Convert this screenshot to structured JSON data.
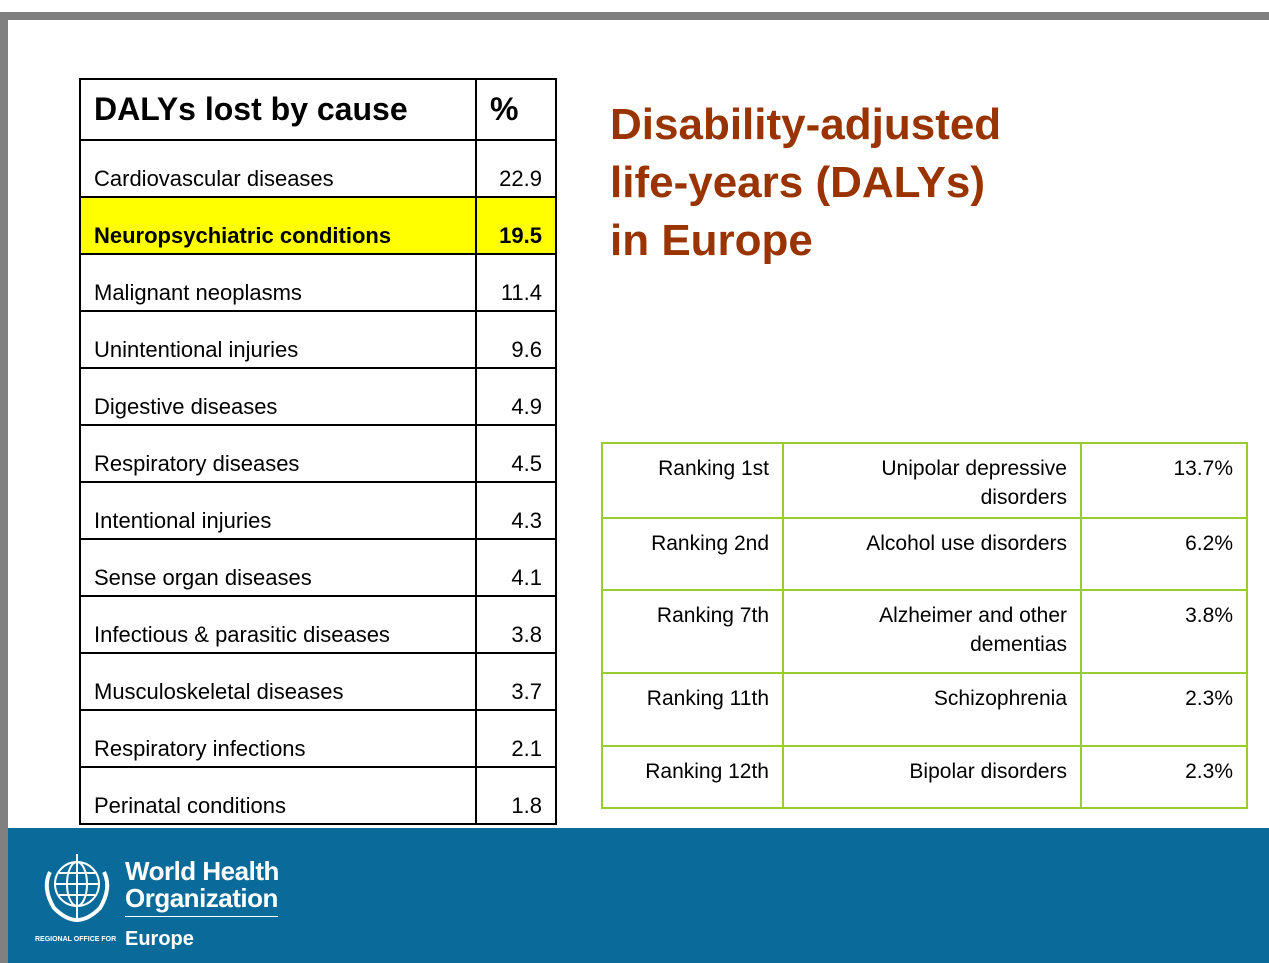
{
  "title": [
    "Disability-adjusted",
    "life-years (DALYs)",
    "in Europe"
  ],
  "table": {
    "header": [
      "DALYs lost by cause",
      "%"
    ],
    "rows": [
      [
        "Cardiovascular diseases",
        "22.9"
      ],
      [
        "Neuropsychiatric conditions",
        "19.5"
      ],
      [
        "Malignant neoplasms",
        "11.4"
      ],
      [
        "Unintentional injuries",
        "9.6"
      ],
      [
        "Digestive diseases",
        "4.9"
      ],
      [
        "Respiratory diseases",
        "4.5"
      ],
      [
        "Intentional injuries",
        "4.3"
      ],
      [
        "Sense organ diseases",
        "4.1"
      ],
      [
        "Infectious & parasitic diseases",
        "3.8"
      ],
      [
        "Musculoskeletal diseases",
        "3.7"
      ],
      [
        "Respiratory infections",
        "2.1"
      ],
      [
        "Perinatal conditions",
        "1.8"
      ]
    ]
  },
  "ranking_table": {
    "rows": [
      [
        "Ranking 1st",
        "Unipolar depressive disorders",
        "13.7%"
      ],
      [
        "Ranking 2nd",
        "Alcohol use disorders",
        "6.2%"
      ],
      [
        "Ranking 7th",
        "Alzheimer and other dementias",
        "3.8%"
      ],
      [
        "Ranking 11th",
        "Schizophrenia",
        "2.3%"
      ],
      [
        "Ranking 12th",
        "Bipolar disorders",
        "2.3%"
      ]
    ]
  },
  "footer": {
    "logo_lines": [
      "World Health",
      "Organization"
    ],
    "office_label": "REGIONAL OFFICE FOR",
    "region": "Europe"
  }
}
